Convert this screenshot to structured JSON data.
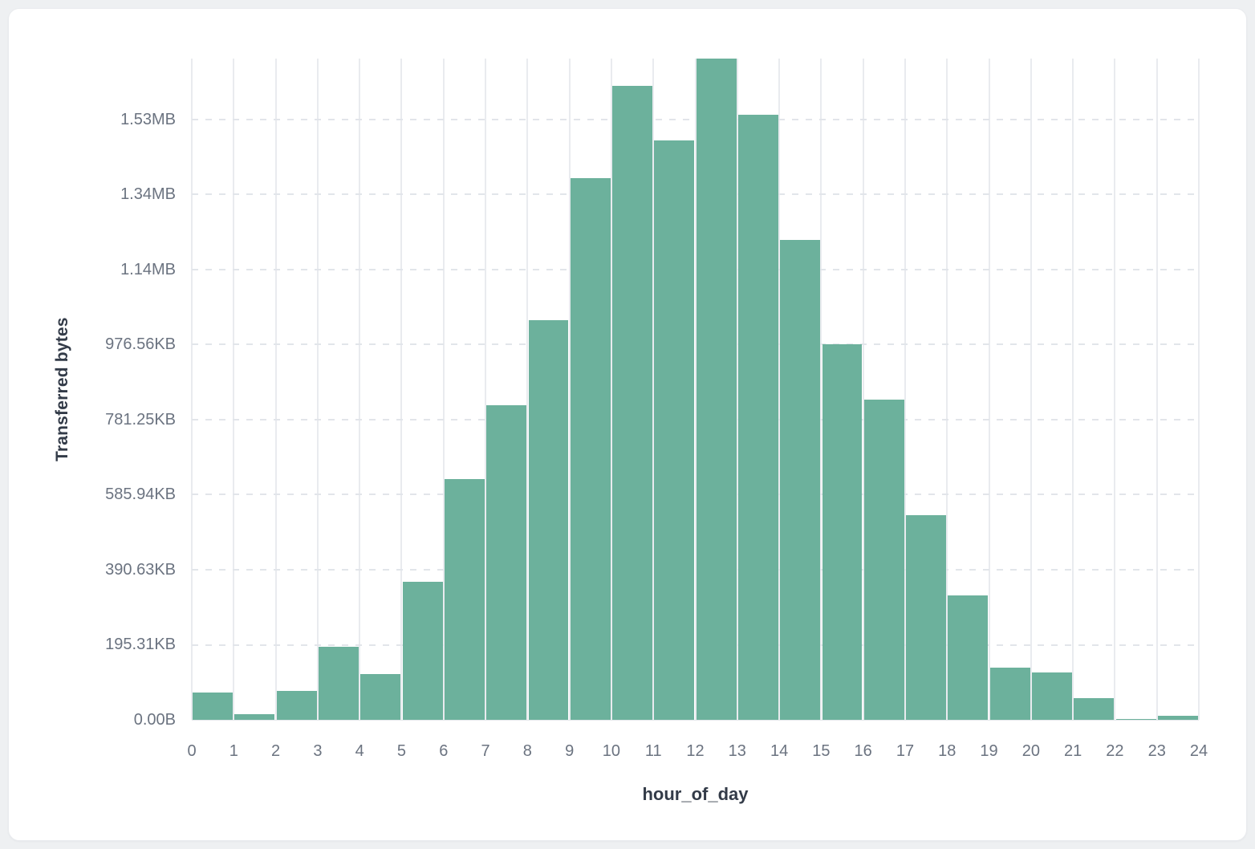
{
  "page": {
    "background": "#eef0f2",
    "card_background": "#ffffff"
  },
  "chart_data": {
    "type": "bar",
    "title": "",
    "xlabel": "hour_of_day",
    "ylabel": "Transferred bytes",
    "legend": null,
    "grid": true,
    "bar_color": "#6cb19c",
    "vertical_gridline_color": "#e9ebef",
    "horizontal_gridline_color": "#e2e5ea",
    "tick_label_color": "#6b7380",
    "axis_title_color": "#333b48",
    "ylim_bytes": [
      0,
      1762400
    ],
    "y_tick_interval_bytes": 200000,
    "y_tick_labels": [
      "0.00B",
      "195.31KB",
      "390.63KB",
      "585.94KB",
      "781.25KB",
      "976.56KB",
      "1.14MB",
      "1.34MB",
      "1.53MB"
    ],
    "x_tick_labels": [
      "0",
      "1",
      "2",
      "3",
      "4",
      "5",
      "6",
      "7",
      "8",
      "9",
      "10",
      "11",
      "12",
      "13",
      "14",
      "15",
      "16",
      "17",
      "18",
      "19",
      "20",
      "21",
      "22",
      "23",
      "24"
    ],
    "categories": [
      0,
      1,
      2,
      3,
      4,
      5,
      6,
      7,
      8,
      9,
      10,
      11,
      12,
      13,
      14,
      15,
      16,
      17,
      18,
      19,
      20,
      21,
      22,
      23
    ],
    "values_bytes": [
      72000,
      15000,
      77000,
      195000,
      123000,
      367000,
      641000,
      838000,
      1066000,
      1443000,
      1689000,
      1544000,
      1762400,
      1612000,
      1278000,
      1000000,
      854000,
      545000,
      332000,
      140000,
      126000,
      57000,
      3200,
      10700
    ]
  }
}
